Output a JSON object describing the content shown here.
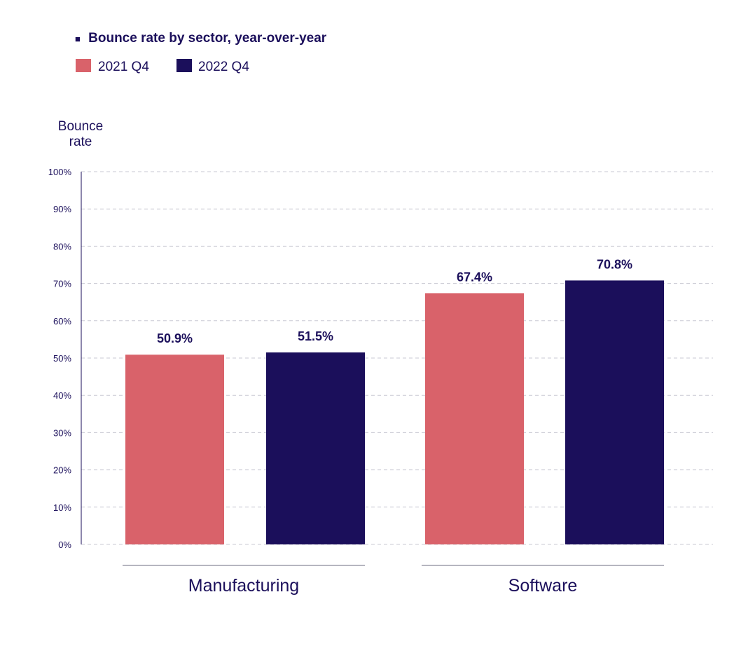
{
  "chart_data": {
    "type": "bar",
    "title": "Bounce rate by sector, year-over-year",
    "title_marker": "■",
    "ylabel_lines": [
      "Bounce",
      "rate"
    ],
    "xlabel": "",
    "categories": [
      "Manufacturing",
      "Software"
    ],
    "series": [
      {
        "name": "2021 Q4",
        "color": "#d9626a",
        "values": [
          50.9,
          67.4
        ]
      },
      {
        "name": "2022 Q4",
        "color": "#1b0f5b",
        "values": [
          51.5,
          70.8
        ]
      }
    ],
    "data_labels": [
      [
        "50.9%",
        "67.4%"
      ],
      [
        "51.5%",
        "70.8%"
      ]
    ],
    "ylim": [
      0,
      100
    ],
    "yticks": [
      0,
      10,
      20,
      30,
      40,
      50,
      60,
      70,
      80,
      90,
      100
    ],
    "ytick_labels": [
      "0%",
      "10%",
      "20%",
      "30%",
      "40%",
      "50%",
      "60%",
      "70%",
      "80%",
      "90%",
      "100%"
    ],
    "grid": true,
    "legend_position": "top-left"
  },
  "colors": {
    "text": "#1b0f5b",
    "grid": "#c9c9d3",
    "rule": "#6e6e80"
  }
}
